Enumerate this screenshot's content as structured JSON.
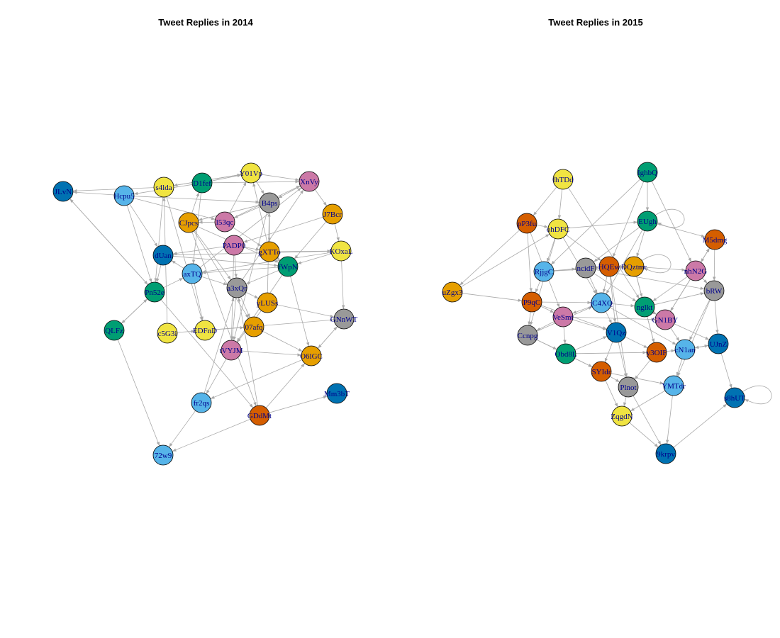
{
  "colors": {
    "blue": "#0072b2",
    "sky": "#56b4e9",
    "green": "#009e73",
    "yellow": "#f0e442",
    "orange": "#e69f00",
    "vermilion": "#d55e00",
    "purple": "#cc79a7",
    "grey": "#999999",
    "edge": "#a9a9a9",
    "label": "#00008b"
  },
  "panels": [
    {
      "id": "g2014",
      "title": "Tweet Replies in 2014",
      "nodes": [
        {
          "id": "JLvN",
          "label": "JLvN",
          "color": "blue"
        },
        {
          "id": "Hcpu",
          "label": "Hcpu5",
          "color": "sky"
        },
        {
          "id": "s4lda",
          "label": "s4lda",
          "color": "yellow"
        },
        {
          "id": "D1fef",
          "label": "D1fef",
          "color": "green"
        },
        {
          "id": "Y01Vp",
          "label": "Y01Vp",
          "color": "yellow"
        },
        {
          "id": "XnVy",
          "label": "XnVy",
          "color": "purple"
        },
        {
          "id": "B4ps",
          "label": "B4ps",
          "color": "grey"
        },
        {
          "id": "J7Bcr",
          "label": "J7Bcr",
          "color": "orange"
        },
        {
          "id": "CJpcs",
          "label": "CJpcs",
          "color": "orange"
        },
        {
          "id": "l53qc",
          "label": "l53qc",
          "color": "purple"
        },
        {
          "id": "PADP",
          "label": "PADP0",
          "color": "purple"
        },
        {
          "id": "gXTT",
          "label": "gXTTo",
          "color": "orange"
        },
        {
          "id": "KOxa",
          "label": "KOxaL",
          "color": "yellow"
        },
        {
          "id": "dUan",
          "label": "dUan",
          "color": "blue"
        },
        {
          "id": "axTQ",
          "label": "axTQ",
          "color": "sky"
        },
        {
          "id": "fWpN",
          "label": "fWpN",
          "color": "green"
        },
        {
          "id": "Pn52",
          "label": "Pn52e",
          "color": "green"
        },
        {
          "id": "a3xQ",
          "label": "a3xQr",
          "color": "grey"
        },
        {
          "id": "yLUS",
          "label": "yLUSs",
          "color": "orange"
        },
        {
          "id": "QLF",
          "label": "QLFz",
          "color": "green"
        },
        {
          "id": "c5G3",
          "label": "c5G3i",
          "color": "yellow"
        },
        {
          "id": "EDFn",
          "label": "EDFnD",
          "color": "yellow"
        },
        {
          "id": "07af",
          "label": "07afq",
          "color": "orange"
        },
        {
          "id": "GNnW",
          "label": "GNnWT",
          "color": "grey"
        },
        {
          "id": "tVYJ",
          "label": "tVYJM",
          "color": "purple"
        },
        {
          "id": "O6lG",
          "label": "O6lGC",
          "color": "orange"
        },
        {
          "id": "Mm3b",
          "label": "Mm3bT",
          "color": "blue"
        },
        {
          "id": "fr2q",
          "label": "fr2qs",
          "color": "sky"
        },
        {
          "id": "GDdM",
          "label": "GDdMt",
          "color": "vermilion"
        },
        {
          "id": "72w",
          "label": "72w9",
          "color": "sky"
        }
      ],
      "edges": [
        [
          "Hcpu",
          "JLvN"
        ],
        [
          "s4lda",
          "JLvN"
        ],
        [
          "D1fef",
          "Hcpu"
        ],
        [
          "Y01Vp",
          "s4lda"
        ],
        [
          "JLvN",
          "Pn52"
        ],
        [
          "Hcpu",
          "dUan"
        ],
        [
          "Hcpu",
          "Pn52"
        ],
        [
          "Hcpu",
          "B4ps"
        ],
        [
          "s4lda",
          "Y01Vp"
        ],
        [
          "D1fef",
          "Y01Vp"
        ],
        [
          "Y01Vp",
          "XnVy"
        ],
        [
          "XnVy",
          "B4ps"
        ],
        [
          "XnVy",
          "J7Bcr"
        ],
        [
          "B4ps",
          "CJpcs"
        ],
        [
          "B4ps",
          "l53qc"
        ],
        [
          "B4ps",
          "gXTT"
        ],
        [
          "J7Bcr",
          "KOxa"
        ],
        [
          "J7Bcr",
          "PADP"
        ],
        [
          "CJpcs",
          "a3xQ"
        ],
        [
          "CJpcs",
          "fWpN"
        ],
        [
          "CJpcs",
          "07af"
        ],
        [
          "l53qc",
          "gXTT"
        ],
        [
          "l53qc",
          "XnVy"
        ],
        [
          "l53qc",
          "Y01Vp"
        ],
        [
          "PADP",
          "gXTT"
        ],
        [
          "PADP",
          "dUan"
        ],
        [
          "PADP",
          "a3xQ"
        ],
        [
          "gXTT",
          "KOxa"
        ],
        [
          "gXTT",
          "fWpN"
        ],
        [
          "gXTT",
          "Y01Vp"
        ],
        [
          "KOxa",
          "fWpN"
        ],
        [
          "KOxa",
          "axTQ"
        ],
        [
          "KOxa",
          "GNnW"
        ],
        [
          "dUan",
          "fWpN"
        ],
        [
          "dUan",
          "Pn52"
        ],
        [
          "axTQ",
          "dUan"
        ],
        [
          "axTQ",
          "EDFn"
        ],
        [
          "axTQ",
          "a3xQ"
        ],
        [
          "fWpN",
          "axTQ"
        ],
        [
          "fWpN",
          "tVYJ"
        ],
        [
          "fWpN",
          "a3xQ"
        ],
        [
          "fWpN",
          "O6lG"
        ],
        [
          "Pn52",
          "QLF"
        ],
        [
          "Pn52",
          "axTQ"
        ],
        [
          "Pn52",
          "GDdM"
        ],
        [
          "a3xQ",
          "tVYJ"
        ],
        [
          "a3xQ",
          "yLUS"
        ],
        [
          "a3xQ",
          "07af"
        ],
        [
          "yLUS",
          "tVYJ"
        ],
        [
          "yLUS",
          "GNnW"
        ],
        [
          "QLF",
          "Pn52"
        ],
        [
          "QLF",
          "72w"
        ],
        [
          "c5G3",
          "s4lda"
        ],
        [
          "c5G3",
          "EDFn"
        ],
        [
          "EDFn",
          "07af"
        ],
        [
          "EDFn",
          "GNnW"
        ],
        [
          "07af",
          "O6lG"
        ],
        [
          "GNnW",
          "O6lG"
        ],
        [
          "tVYJ",
          "fr2q"
        ],
        [
          "tVYJ",
          "O6lG"
        ],
        [
          "O6lG",
          "GNnW"
        ],
        [
          "O6lG",
          "fr2q"
        ],
        [
          "GDdM",
          "Mm3b"
        ],
        [
          "GDdM",
          "O6lG"
        ],
        [
          "GDdM",
          "72w"
        ],
        [
          "fr2q",
          "72w"
        ],
        [
          "fr2q",
          "a3xQ"
        ],
        [
          "CJpcs",
          "GDdM"
        ],
        [
          "s4lda",
          "EDFn"
        ],
        [
          "D1fef",
          "axTQ"
        ],
        [
          "Y01Vp",
          "B4ps"
        ],
        [
          "J7Bcr",
          "fWpN"
        ],
        [
          "B4ps",
          "tVYJ"
        ],
        [
          "axTQ",
          "XnVy"
        ],
        [
          "dUan",
          "KOxa"
        ],
        [
          "CJpcs",
          "D1fef"
        ],
        [
          "l53qc",
          "CJpcs"
        ],
        [
          "PADP",
          "tVYJ"
        ],
        [
          "Pn52",
          "JLvN"
        ],
        [
          "Hcpu",
          "l53qc"
        ],
        [
          "s4lda",
          "Pn52"
        ],
        [
          "GDdM",
          "a3xQ"
        ],
        [
          "a3xQ",
          "XnVy"
        ],
        [
          "yLUS",
          "B4ps"
        ],
        [
          "D1fef",
          "XnVy"
        ]
      ]
    },
    {
      "id": "g2015",
      "title": "Tweet Replies in 2015",
      "nodes": [
        {
          "id": "fhTD",
          "label": "fhTDd",
          "color": "yellow"
        },
        {
          "id": "IghbQ",
          "label": "IghbQ",
          "color": "green"
        },
        {
          "id": "pP3f",
          "label": "pP3fu",
          "color": "vermilion"
        },
        {
          "id": "ohDF",
          "label": "ohDFC",
          "color": "yellow"
        },
        {
          "id": "EUg",
          "label": "EUgh",
          "color": "green"
        },
        {
          "id": "M5dm",
          "label": "M5dmg",
          "color": "vermilion"
        },
        {
          "id": "RjjgC",
          "label": "RjjgC",
          "color": "sky"
        },
        {
          "id": "ncid",
          "label": "ncidF",
          "color": "grey"
        },
        {
          "id": "HQEw",
          "label": "HQEw",
          "color": "vermilion"
        },
        {
          "id": "DQzt",
          "label": "DQztmr",
          "color": "orange"
        },
        {
          "id": "nhN2",
          "label": "nhN2G",
          "color": "purple"
        },
        {
          "id": "uZgx",
          "label": "uZgx3",
          "color": "orange"
        },
        {
          "id": "P9q",
          "label": "P9qC",
          "color": "vermilion"
        },
        {
          "id": "jC4X",
          "label": "jC4XQ",
          "color": "sky"
        },
        {
          "id": "nglkt",
          "label": "nglkt",
          "color": "green"
        },
        {
          "id": "bRW",
          "label": "bRW",
          "color": "grey"
        },
        {
          "id": "VeSm",
          "label": "VeSmt",
          "color": "purple"
        },
        {
          "id": "GN1B",
          "label": "GN1BY",
          "color": "purple"
        },
        {
          "id": "Ccnp",
          "label": "Ccnpg",
          "color": "grey"
        },
        {
          "id": "V1Qz",
          "label": "V1Qz",
          "color": "blue"
        },
        {
          "id": "UJnZ",
          "label": "UJnZ",
          "color": "blue"
        },
        {
          "id": "Obd8",
          "label": "Obd8L",
          "color": "green"
        },
        {
          "id": "y3OI",
          "label": "y3OIF",
          "color": "vermilion"
        },
        {
          "id": "cN1a",
          "label": "cN1an",
          "color": "sky"
        },
        {
          "id": "SYId",
          "label": "SYIdr",
          "color": "vermilion"
        },
        {
          "id": "Plno",
          "label": "Plnot",
          "color": "grey"
        },
        {
          "id": "YMTd",
          "label": "YMTdr",
          "color": "sky"
        },
        {
          "id": "s8hU",
          "label": "s8hUT",
          "color": "blue"
        },
        {
          "id": "Zqgd",
          "label": "ZqgdN",
          "color": "yellow"
        },
        {
          "id": "9krp",
          "label": "9krpv",
          "color": "blue"
        }
      ],
      "edges": [
        [
          "fhTD",
          "ohDF"
        ],
        [
          "fhTD",
          "pP3f"
        ],
        [
          "IghbQ",
          "RjjgC"
        ],
        [
          "IghbQ",
          "EUg"
        ],
        [
          "IghbQ",
          "nhN2"
        ],
        [
          "pP3f",
          "uZgx"
        ],
        [
          "pP3f",
          "P9q"
        ],
        [
          "pP3f",
          "ohDF"
        ],
        [
          "ohDF",
          "EUg"
        ],
        [
          "ohDF",
          "RjjgC"
        ],
        [
          "ohDF",
          "HQEw"
        ],
        [
          "ohDF",
          "jC4X"
        ],
        [
          "EUg",
          "M5dm"
        ],
        [
          "EUg",
          "ncid"
        ],
        [
          "EUg",
          "DQzt"
        ],
        [
          "EUg",
          "EUg"
        ],
        [
          "M5dm",
          "nhN2"
        ],
        [
          "M5dm",
          "bRW"
        ],
        [
          "RjjgC",
          "P9q"
        ],
        [
          "RjjgC",
          "ncid"
        ],
        [
          "ncid",
          "HQEw"
        ],
        [
          "ncid",
          "jC4X"
        ],
        [
          "ncid",
          "nglkt"
        ],
        [
          "HQEw",
          "DQzt"
        ],
        [
          "HQEw",
          "V1Qz"
        ],
        [
          "HQEw",
          "jC4X"
        ],
        [
          "DQzt",
          "DQzt"
        ],
        [
          "DQzt",
          "nhN2"
        ],
        [
          "DQzt",
          "nglkt"
        ],
        [
          "nhN2",
          "bRW"
        ],
        [
          "nhN2",
          "GN1B"
        ],
        [
          "nhN2",
          "M5dm"
        ],
        [
          "uZgx",
          "P9q"
        ],
        [
          "P9q",
          "jC4X"
        ],
        [
          "P9q",
          "Ccnp"
        ],
        [
          "P9q",
          "VeSm"
        ],
        [
          "jC4X",
          "nglkt"
        ],
        [
          "jC4X",
          "V1Qz"
        ],
        [
          "jC4X",
          "VeSm"
        ],
        [
          "nglkt",
          "GN1B"
        ],
        [
          "nglkt",
          "y3OI"
        ],
        [
          "nglkt",
          "bRW"
        ],
        [
          "bRW",
          "UJnZ"
        ],
        [
          "bRW",
          "cN1a"
        ],
        [
          "VeSm",
          "Ccnp"
        ],
        [
          "VeSm",
          "V1Qz"
        ],
        [
          "VeSm",
          "Obd8"
        ],
        [
          "GN1B",
          "UJnZ"
        ],
        [
          "GN1B",
          "cN1a"
        ],
        [
          "Ccnp",
          "Obd8"
        ],
        [
          "Ccnp",
          "SYId"
        ],
        [
          "V1Qz",
          "y3OI"
        ],
        [
          "V1Qz",
          "SYId"
        ],
        [
          "V1Qz",
          "Plno"
        ],
        [
          "UJnZ",
          "s8hU"
        ],
        [
          "UJnZ",
          "cN1a"
        ],
        [
          "Obd8",
          "SYId"
        ],
        [
          "Obd8",
          "y3OI"
        ],
        [
          "y3OI",
          "Plno"
        ],
        [
          "y3OI",
          "cN1a"
        ],
        [
          "cN1a",
          "YMTd"
        ],
        [
          "SYId",
          "Plno"
        ],
        [
          "SYId",
          "Zqgd"
        ],
        [
          "Plno",
          "Zqgd"
        ],
        [
          "Plno",
          "9krp"
        ],
        [
          "YMTd",
          "9krp"
        ],
        [
          "YMTd",
          "Zqgd"
        ],
        [
          "s8hU",
          "s8hU"
        ],
        [
          "Zqgd",
          "9krp"
        ],
        [
          "9krp",
          "s8hU"
        ],
        [
          "fhTD",
          "nglkt"
        ],
        [
          "IghbQ",
          "HQEw"
        ],
        [
          "RjjgC",
          "DQzt"
        ],
        [
          "ncid",
          "bRW"
        ],
        [
          "P9q",
          "V1Qz"
        ],
        [
          "Ccnp",
          "jC4X"
        ],
        [
          "VeSm",
          "GN1B"
        ],
        [
          "jC4X",
          "cN1a"
        ],
        [
          "HQEw",
          "Plno"
        ],
        [
          "DQzt",
          "y3OI"
        ],
        [
          "ohDF",
          "Ccnp"
        ],
        [
          "pP3f",
          "VeSm"
        ],
        [
          "uZgx",
          "ohDF"
        ],
        [
          "nhN2",
          "nglkt"
        ],
        [
          "bRW",
          "YMTd"
        ],
        [
          "cN1a",
          "UJnZ"
        ],
        [
          "SYId",
          "YMTd"
        ],
        [
          "Obd8",
          "V1Qz"
        ],
        [
          "GN1B",
          "M5dm"
        ],
        [
          "EUg",
          "jC4X"
        ]
      ]
    }
  ]
}
